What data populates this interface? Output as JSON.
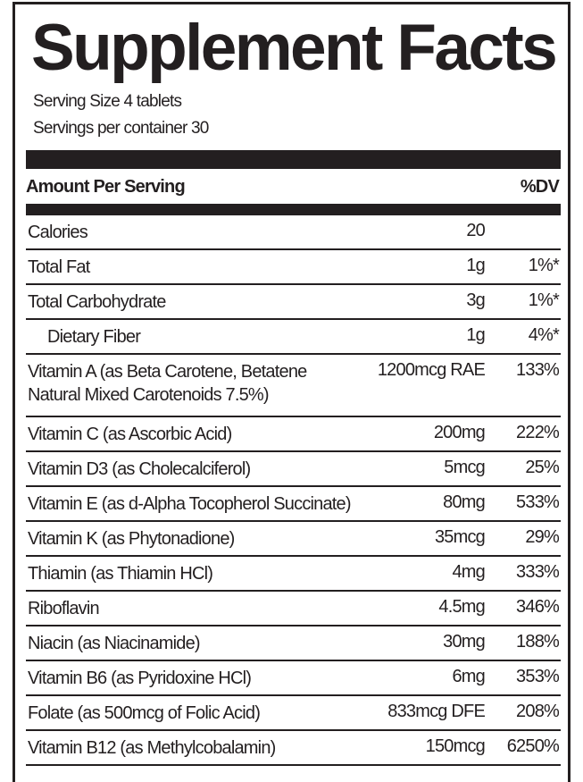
{
  "title": "Supplement Facts",
  "serving_size": "Serving Size 4 tablets",
  "servings_per_container": "Servings per container 30",
  "header": {
    "amount": "Amount Per Serving",
    "dv": "%DV"
  },
  "rows": [
    {
      "name": "Calories",
      "amount": "20",
      "dv": ""
    },
    {
      "name": "Total Fat",
      "amount": "1g",
      "dv": "1%*"
    },
    {
      "name": "Total Carbohydrate",
      "amount": "3g",
      "dv": "1%*"
    },
    {
      "name": "Dietary Fiber",
      "amount": "1g",
      "dv": "4%*"
    },
    {
      "name": "Vitamin A (as Beta Carotene, Betatene",
      "name2": "Natural Mixed Carotenoids 7.5%)",
      "amount": "1200mcg RAE",
      "dv": "133%"
    },
    {
      "name": "Vitamin C (as Ascorbic Acid)",
      "amount": "200mg",
      "dv": "222%"
    },
    {
      "name": "Vitamin D3 (as Cholecalciferol)",
      "amount": "5mcg",
      "dv": "25%"
    },
    {
      "name": "Vitamin E (as d-Alpha Tocopherol Succinate)",
      "amount": "80mg",
      "dv": "533%"
    },
    {
      "name": "Vitamin K (as Phytonadione)",
      "amount": "35mcg",
      "dv": "29%"
    },
    {
      "name": "Thiamin (as Thiamin HCl)",
      "amount": "4mg",
      "dv": "333%"
    },
    {
      "name": "Riboflavin",
      "amount": "4.5mg",
      "dv": "346%"
    },
    {
      "name": "Niacin (as Niacinamide)",
      "amount": "30mg",
      "dv": "188%"
    },
    {
      "name": "Vitamin B6 (as Pyridoxine HCl)",
      "amount": "6mg",
      "dv": "353%"
    },
    {
      "name": "Folate (as 500mcg of Folic Acid)",
      "amount": "833mcg DFE",
      "dv": "208%"
    },
    {
      "name": "Vitamin B12 (as Methylcobalamin)",
      "amount": "150mcg",
      "dv": "6250%"
    }
  ]
}
